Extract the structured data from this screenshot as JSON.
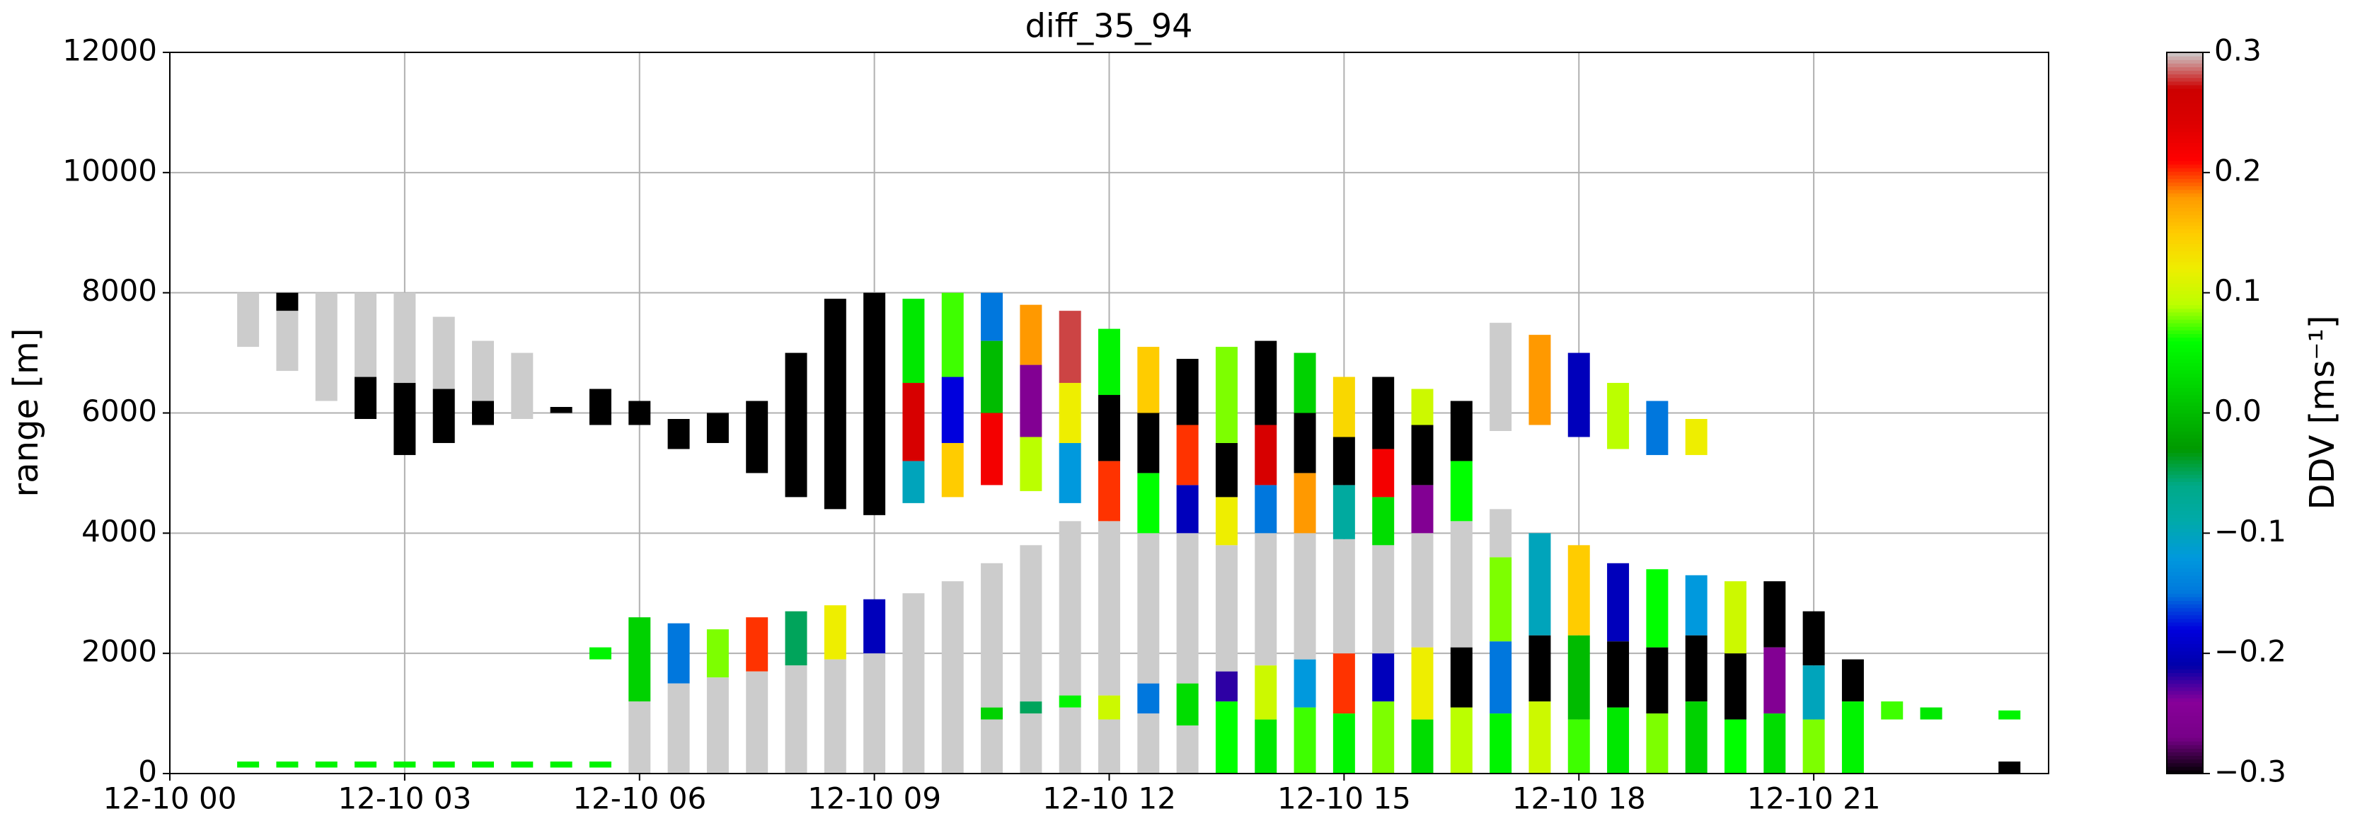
{
  "chart_data": {
    "type": "heatmap",
    "title": "diff_35_94",
    "ylabel": "range [m]",
    "xlim": [
      0,
      24
    ],
    "xticks": [
      {
        "value": 0,
        "label": "12-10 00"
      },
      {
        "value": 3,
        "label": "12-10 03"
      },
      {
        "value": 6,
        "label": "12-10 06"
      },
      {
        "value": 9,
        "label": "12-10 09"
      },
      {
        "value": 12,
        "label": "12-10 12"
      },
      {
        "value": 15,
        "label": "12-10 15"
      },
      {
        "value": 18,
        "label": "12-10 18"
      },
      {
        "value": 21,
        "label": "12-10 21"
      }
    ],
    "ylim": [
      0,
      12000
    ],
    "yticks": [
      0,
      2000,
      4000,
      6000,
      8000,
      10000,
      12000
    ],
    "grid": true,
    "colormap": "nipy_spectral",
    "over_color": "#cccccc",
    "under_color": "#000000",
    "colorbar": {
      "label": "DDV [ms⁻¹]",
      "clim": [
        -0.3,
        0.3
      ],
      "ticks": [
        {
          "value": -0.3,
          "label": "−0.3"
        },
        {
          "value": -0.2,
          "label": "−0.2"
        },
        {
          "value": -0.1,
          "label": "−0.1"
        },
        {
          "value": 0,
          "label": "0.0"
        },
        0.1,
        0.2,
        0.3
      ]
    },
    "columns": [
      {
        "x": 1.0,
        "segments": [
          [
            100,
            200,
            0.05
          ],
          [
            7100,
            8000,
            0.35
          ]
        ]
      },
      {
        "x": 1.5,
        "segments": [
          [
            100,
            200,
            0.05
          ],
          [
            6700,
            7700,
            0.35
          ],
          [
            7700,
            8000,
            -0.35
          ]
        ]
      },
      {
        "x": 2.0,
        "segments": [
          [
            100,
            200,
            0.05
          ],
          [
            6200,
            8000,
            0.35
          ]
        ]
      },
      {
        "x": 2.5,
        "segments": [
          [
            100,
            200,
            0.05
          ],
          [
            5900,
            6600,
            -0.35
          ],
          [
            6600,
            8000,
            0.35
          ]
        ]
      },
      {
        "x": 3.0,
        "segments": [
          [
            100,
            200,
            0.05
          ],
          [
            5300,
            6500,
            -0.35
          ],
          [
            6500,
            8000,
            0.35
          ]
        ]
      },
      {
        "x": 3.5,
        "segments": [
          [
            100,
            200,
            0.05
          ],
          [
            5500,
            6400,
            -0.35
          ],
          [
            6400,
            7600,
            0.35
          ]
        ]
      },
      {
        "x": 4.0,
        "segments": [
          [
            100,
            200,
            0.05
          ],
          [
            5800,
            6200,
            -0.35
          ],
          [
            6200,
            7200,
            0.35
          ]
        ]
      },
      {
        "x": 4.5,
        "segments": [
          [
            100,
            200,
            0.05
          ],
          [
            5900,
            7000,
            0.35
          ]
        ]
      },
      {
        "x": 5.0,
        "segments": [
          [
            100,
            200,
            0.05
          ],
          [
            6000,
            6100,
            -0.35
          ]
        ]
      },
      {
        "x": 5.5,
        "segments": [
          [
            100,
            200,
            0.05
          ],
          [
            1900,
            2100,
            0.05
          ],
          [
            5800,
            6400,
            -0.35
          ]
        ]
      },
      {
        "x": 6.0,
        "segments": [
          [
            0,
            1200,
            0.35
          ],
          [
            1200,
            2600,
            0.02
          ],
          [
            5800,
            6200,
            -0.35
          ]
        ]
      },
      {
        "x": 6.5,
        "segments": [
          [
            0,
            1500,
            0.35
          ],
          [
            1500,
            2500,
            -0.15
          ],
          [
            5400,
            5900,
            -0.35
          ]
        ]
      },
      {
        "x": 7.0,
        "segments": [
          [
            0,
            1600,
            0.35
          ],
          [
            1600,
            2400,
            0.08
          ],
          [
            5500,
            6000,
            -0.35
          ]
        ]
      },
      {
        "x": 7.5,
        "segments": [
          [
            0,
            1700,
            0.35
          ],
          [
            1700,
            2600,
            0.2
          ],
          [
            5000,
            6200,
            -0.35
          ]
        ]
      },
      {
        "x": 8.0,
        "segments": [
          [
            0,
            1800,
            0.35
          ],
          [
            1800,
            2700,
            -0.05
          ],
          [
            4600,
            7000,
            -0.35
          ]
        ]
      },
      {
        "x": 8.5,
        "segments": [
          [
            0,
            1900,
            0.35
          ],
          [
            1900,
            2800,
            0.12
          ],
          [
            4400,
            7900,
            -0.35
          ]
        ]
      },
      {
        "x": 9.0,
        "segments": [
          [
            0,
            2000,
            0.35
          ],
          [
            2000,
            2900,
            -0.2
          ],
          [
            4300,
            8000,
            -0.35
          ]
        ]
      },
      {
        "x": 9.5,
        "segments": [
          [
            0,
            3000,
            0.35
          ],
          [
            4500,
            5200,
            -0.1
          ],
          [
            5200,
            6500,
            0.25
          ],
          [
            6500,
            7900,
            0.04
          ]
        ]
      },
      {
        "x": 10.0,
        "segments": [
          [
            0,
            3200,
            0.35
          ],
          [
            4600,
            5500,
            0.15
          ],
          [
            5500,
            6600,
            -0.18
          ],
          [
            6600,
            8000,
            0.07
          ]
        ]
      },
      {
        "x": 10.5,
        "segments": [
          [
            0,
            900,
            0.35
          ],
          [
            900,
            1100,
            0.02
          ],
          [
            1100,
            3500,
            0.35
          ],
          [
            4800,
            6000,
            0.22
          ],
          [
            6000,
            7200,
            0.0
          ],
          [
            7200,
            8000,
            -0.15
          ]
        ]
      },
      {
        "x": 11.0,
        "segments": [
          [
            0,
            1000,
            0.35
          ],
          [
            1000,
            1200,
            -0.05
          ],
          [
            1200,
            3800,
            0.35
          ],
          [
            4700,
            5600,
            0.09
          ],
          [
            5600,
            6800,
            -0.25
          ],
          [
            6800,
            7800,
            0.18
          ]
        ]
      },
      {
        "x": 11.5,
        "segments": [
          [
            0,
            1100,
            0.35
          ],
          [
            1100,
            1300,
            0.05
          ],
          [
            1300,
            4200,
            0.35
          ],
          [
            4500,
            5500,
            -0.12
          ],
          [
            5500,
            6500,
            0.12
          ],
          [
            6500,
            7700,
            0.28
          ]
        ]
      },
      {
        "x": 12.0,
        "segments": [
          [
            0,
            900,
            0.35
          ],
          [
            900,
            1300,
            0.1
          ],
          [
            1300,
            4200,
            0.35
          ],
          [
            4200,
            5200,
            0.2
          ],
          [
            5200,
            6300,
            -0.35
          ],
          [
            6300,
            7400,
            0.05
          ]
        ]
      },
      {
        "x": 12.5,
        "segments": [
          [
            0,
            1000,
            0.35
          ],
          [
            1000,
            1500,
            -0.15
          ],
          [
            1500,
            4000,
            0.35
          ],
          [
            4000,
            5000,
            0.06
          ],
          [
            5000,
            6000,
            -0.3
          ],
          [
            6000,
            7100,
            0.15
          ]
        ]
      },
      {
        "x": 13.0,
        "segments": [
          [
            0,
            800,
            0.35
          ],
          [
            800,
            1500,
            0.03
          ],
          [
            1500,
            4000,
            0.35
          ],
          [
            4000,
            4800,
            -0.2
          ],
          [
            4800,
            5800,
            0.2
          ],
          [
            5800,
            6900,
            -0.35
          ]
        ]
      },
      {
        "x": 13.5,
        "segments": [
          [
            0,
            1200,
            0.06
          ],
          [
            1200,
            1700,
            -0.22
          ],
          [
            1700,
            3800,
            0.35
          ],
          [
            3800,
            4600,
            0.12
          ],
          [
            4600,
            5500,
            -0.35
          ],
          [
            5500,
            7100,
            0.08
          ]
        ]
      },
      {
        "x": 14.0,
        "segments": [
          [
            0,
            900,
            0.04
          ],
          [
            900,
            1800,
            0.1
          ],
          [
            1800,
            4000,
            0.35
          ],
          [
            4000,
            4800,
            -0.15
          ],
          [
            4800,
            5800,
            0.25
          ],
          [
            5800,
            7200,
            -0.35
          ]
        ]
      },
      {
        "x": 14.5,
        "segments": [
          [
            0,
            1100,
            0.07
          ],
          [
            1100,
            1900,
            -0.12
          ],
          [
            1900,
            4000,
            0.35
          ],
          [
            4000,
            5000,
            0.18
          ],
          [
            5000,
            6000,
            -0.35
          ],
          [
            6000,
            7000,
            0.02
          ]
        ]
      },
      {
        "x": 15.0,
        "segments": [
          [
            0,
            1000,
            0.05
          ],
          [
            1000,
            2000,
            0.2
          ],
          [
            2000,
            3900,
            0.35
          ],
          [
            3900,
            4800,
            -0.08
          ],
          [
            4800,
            5600,
            -0.35
          ],
          [
            5600,
            6600,
            0.14
          ]
        ]
      },
      {
        "x": 15.5,
        "segments": [
          [
            0,
            1200,
            0.08
          ],
          [
            1200,
            2000,
            -0.2
          ],
          [
            2000,
            3800,
            0.35
          ],
          [
            3800,
            4600,
            0.03
          ],
          [
            4600,
            5400,
            0.22
          ],
          [
            5400,
            6600,
            -0.35
          ]
        ]
      },
      {
        "x": 16.0,
        "segments": [
          [
            0,
            900,
            0.03
          ],
          [
            900,
            2100,
            0.12
          ],
          [
            2100,
            4000,
            0.35
          ],
          [
            4000,
            4800,
            -0.25
          ],
          [
            4800,
            5800,
            -0.35
          ],
          [
            5800,
            6400,
            0.1
          ]
        ]
      },
      {
        "x": 16.5,
        "segments": [
          [
            0,
            1100,
            0.09
          ],
          [
            1100,
            2100,
            -0.35
          ],
          [
            2100,
            4200,
            0.35
          ],
          [
            4200,
            5200,
            0.06
          ],
          [
            5200,
            6200,
            -0.35
          ]
        ]
      },
      {
        "x": 17.0,
        "segments": [
          [
            0,
            1000,
            0.05
          ],
          [
            1000,
            2200,
            -0.15
          ],
          [
            2200,
            3600,
            0.08
          ],
          [
            3600,
            4400,
            0.35
          ],
          [
            5700,
            7500,
            0.35
          ]
        ]
      },
      {
        "x": 17.5,
        "segments": [
          [
            0,
            1200,
            0.1
          ],
          [
            1200,
            2300,
            -0.35
          ],
          [
            2300,
            4000,
            -0.1
          ],
          [
            5800,
            7300,
            0.18
          ]
        ]
      },
      {
        "x": 18.0,
        "segments": [
          [
            0,
            900,
            0.07
          ],
          [
            900,
            2300,
            0.0
          ],
          [
            2300,
            3800,
            0.15
          ],
          [
            5600,
            7000,
            -0.2
          ]
        ]
      },
      {
        "x": 18.5,
        "segments": [
          [
            0,
            1100,
            0.04
          ],
          [
            1100,
            2200,
            -0.35
          ],
          [
            2200,
            3500,
            -0.2
          ],
          [
            5400,
            6500,
            0.09
          ]
        ]
      },
      {
        "x": 19.0,
        "segments": [
          [
            0,
            1000,
            0.08
          ],
          [
            1000,
            2100,
            -0.3
          ],
          [
            2100,
            3400,
            0.06
          ],
          [
            5300,
            6200,
            -0.15
          ]
        ]
      },
      {
        "x": 19.5,
        "segments": [
          [
            0,
            1200,
            0.02
          ],
          [
            1200,
            2300,
            -0.35
          ],
          [
            2300,
            3300,
            -0.12
          ],
          [
            5300,
            5900,
            0.12
          ]
        ]
      },
      {
        "x": 20.0,
        "segments": [
          [
            0,
            900,
            0.06
          ],
          [
            900,
            2000,
            -0.35
          ],
          [
            2000,
            3200,
            0.1
          ]
        ]
      },
      {
        "x": 20.5,
        "segments": [
          [
            0,
            1000,
            0.03
          ],
          [
            1000,
            2100,
            -0.25
          ],
          [
            2100,
            3200,
            -0.35
          ]
        ]
      },
      {
        "x": 21.0,
        "segments": [
          [
            0,
            900,
            0.08
          ],
          [
            900,
            1800,
            -0.1
          ],
          [
            1800,
            2700,
            -0.35
          ]
        ]
      },
      {
        "x": 21.5,
        "segments": [
          [
            0,
            1200,
            0.05
          ],
          [
            1200,
            1900,
            -0.35
          ]
        ]
      },
      {
        "x": 22.0,
        "segments": [
          [
            900,
            1200,
            0.07
          ]
        ]
      },
      {
        "x": 22.5,
        "segments": [
          [
            900,
            1100,
            0.04
          ]
        ]
      },
      {
        "x": 23.5,
        "segments": [
          [
            0,
            200,
            -0.35
          ],
          [
            900,
            1050,
            0.05
          ]
        ]
      }
    ]
  }
}
